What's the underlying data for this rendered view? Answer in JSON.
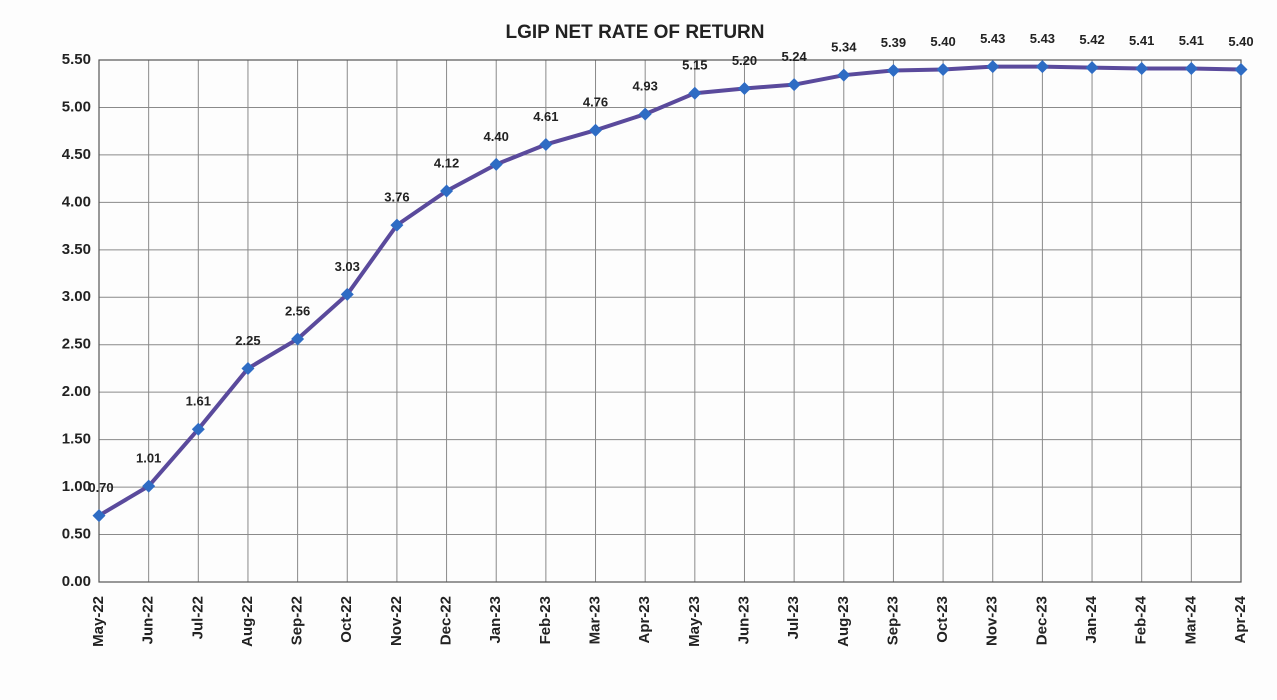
{
  "chart_data": {
    "type": "line",
    "title": "LGIP NET RATE OF RETURN",
    "categories": [
      "May-22",
      "Jun-22",
      "Jul-22",
      "Aug-22",
      "Sep-22",
      "Oct-22",
      "Nov-22",
      "Dec-22",
      "Jan-23",
      "Feb-23",
      "Mar-23",
      "Apr-23",
      "May-23",
      "Jun-23",
      "Jul-23",
      "Aug-23",
      "Sep-23",
      "Oct-23",
      "Nov-23",
      "Dec-23",
      "Jan-24",
      "Feb-24",
      "Mar-24",
      "Apr-24"
    ],
    "series": [
      {
        "name": "LGIP Net Rate of Return",
        "color": "#5a4a9c",
        "marker_color": "#2e6cc4",
        "values": [
          0.7,
          1.01,
          1.61,
          2.25,
          2.56,
          3.03,
          3.76,
          4.12,
          4.4,
          4.61,
          4.76,
          4.93,
          5.15,
          5.2,
          5.24,
          5.34,
          5.39,
          5.4,
          5.43,
          5.43,
          5.42,
          5.41,
          5.41,
          5.4
        ],
        "value_labels": [
          "0.70",
          "1.01",
          "1.61",
          "2.25",
          "2.56",
          "3.03",
          "3.76",
          "4.12",
          "4.40",
          "4.61",
          "4.76",
          "4.93",
          "5.15",
          "5.20",
          "5.24",
          "5.34",
          "5.39",
          "5.40",
          "5.43",
          "5.43",
          "5.42",
          "5.41",
          "5.41",
          "5.40"
        ]
      }
    ],
    "ylim": [
      0,
      5.5
    ],
    "yticks": [
      {
        "value": 0,
        "label": "0.00"
      },
      {
        "value": 0.5,
        "label": "0.50"
      },
      {
        "value": 1,
        "label": "1.00"
      },
      {
        "value": 1.5,
        "label": "1.50"
      },
      {
        "value": 2,
        "label": "2.00"
      },
      {
        "value": 2.5,
        "label": "2.50"
      },
      {
        "value": 3,
        "label": "3.00"
      },
      {
        "value": 3.5,
        "label": "3.50"
      },
      {
        "value": 4,
        "label": "4.00"
      },
      {
        "value": 4.5,
        "label": "4.50"
      },
      {
        "value": 5,
        "label": "5.00"
      },
      {
        "value": 5.5,
        "label": "5.50"
      }
    ],
    "grid": true
  }
}
